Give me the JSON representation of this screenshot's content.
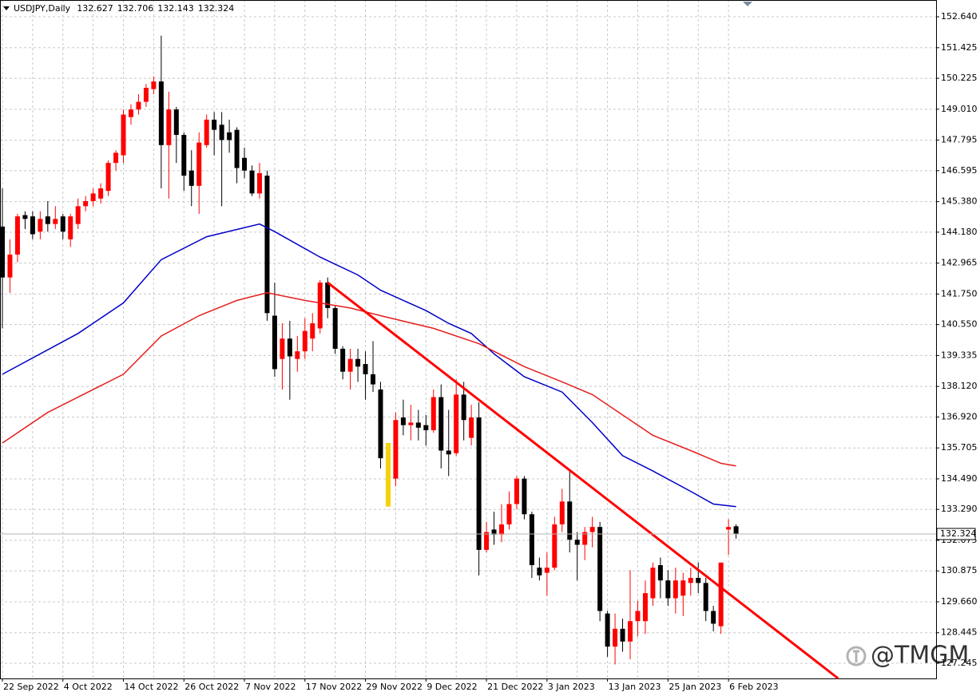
{
  "chart_data": {
    "type": "candlestick",
    "symbol": "USDJPY,Daily",
    "watermark": "@TMGM",
    "categories": [
      "22 Sep 2022",
      null,
      null,
      null,
      null,
      null,
      null,
      null,
      "4 Oct 2022",
      null,
      null,
      null,
      null,
      null,
      null,
      null,
      "14 Oct 2022",
      null,
      null,
      null,
      null,
      null,
      null,
      null,
      "26 Oct 2022",
      null,
      null,
      null,
      null,
      null,
      null,
      null,
      "7 Nov 2022",
      null,
      null,
      null,
      null,
      null,
      null,
      null,
      "17 Nov 2022",
      null,
      null,
      null,
      null,
      null,
      null,
      null,
      "29 Nov 2022",
      null,
      null,
      null,
      null,
      null,
      null,
      null,
      "9 Dec 2022",
      null,
      null,
      null,
      null,
      null,
      null,
      null,
      "21 Dec 2022",
      null,
      null,
      null,
      null,
      null,
      null,
      null,
      "3 Jan 2023",
      null,
      null,
      null,
      null,
      null,
      null,
      null,
      "13 Jan 2023",
      null,
      null,
      null,
      null,
      null,
      null,
      null,
      "25 Jan 2023",
      null,
      null,
      null,
      null,
      null,
      null,
      null,
      "6 Feb 2023",
      null
    ],
    "open": [
      144.4,
      142.4,
      143.3,
      144.85,
      144.8,
      144.2,
      144.8,
      144.5,
      144.8,
      143.9,
      144.5,
      145.2,
      145.4,
      145.5,
      145.8,
      146.9,
      147.2,
      148.7,
      149.0,
      149.3,
      149.8,
      150.1,
      147.6,
      149.0,
      148.0,
      146.6,
      146.0,
      147.6,
      148.6,
      148.4,
      148.1,
      148.2,
      147.1,
      146.6,
      145.7,
      146.4,
      140.9,
      139.2,
      140.0,
      139.2,
      139.5,
      140.0,
      140.4,
      142.2,
      141.2,
      139.6,
      138.7,
      139.2,
      139.0,
      138.6,
      138.0,
      135.9,
      134.5,
      136.9,
      136.6,
      136.7,
      136.6,
      136.4,
      137.7,
      135.6,
      135.5,
      137.8,
      136.1,
      136.9,
      131.7,
      132.5,
      132.3,
      132.7,
      133.5,
      134.5,
      133.1,
      131.0,
      130.8,
      131.0,
      132.7,
      133.6,
      132.1,
      131.9,
      132.4,
      132.6,
      129.2,
      127.9,
      128.6,
      128.1,
      128.9,
      128.9,
      129.8,
      131.1,
      130.5,
      129.8,
      129.9,
      130.4,
      130.6,
      130.4,
      129.3,
      128.7,
      132.5,
      132.627
    ],
    "high": [
      145.9,
      143.9,
      144.9,
      145.0,
      145.0,
      145.0,
      145.4,
      145.2,
      144.9,
      144.9,
      145.5,
      145.6,
      145.9,
      146.1,
      147.0,
      147.4,
      149.0,
      149.2,
      149.6,
      150.0,
      150.3,
      151.9,
      149.7,
      149.1,
      148.1,
      147.4,
      148.1,
      148.8,
      148.9,
      148.9,
      148.6,
      148.3,
      147.5,
      146.8,
      146.9,
      146.6,
      142.2,
      140.6,
      140.7,
      140.1,
      140.8,
      141.0,
      142.3,
      142.4,
      141.3,
      139.7,
      139.6,
      139.6,
      139.5,
      139.9,
      138.3,
      135.9,
      137.1,
      137.6,
      137.4,
      137.2,
      137.0,
      138.0,
      138.2,
      137.2,
      138.4,
      138.3,
      137.4,
      137.5,
      132.8,
      133.2,
      133.5,
      134.0,
      134.6,
      134.6,
      133.2,
      131.4,
      131.6,
      133.0,
      134.1,
      134.8,
      132.4,
      132.6,
      133.0,
      132.8,
      129.3,
      129.2,
      129.0,
      130.9,
      129.7,
      130.5,
      131.2,
      131.4,
      130.9,
      131.0,
      130.8,
      131.0,
      131.2,
      130.6,
      129.5,
      131.2,
      132.9,
      132.706
    ],
    "low": [
      140.4,
      141.8,
      143.0,
      144.3,
      143.9,
      143.9,
      144.2,
      144.3,
      143.9,
      143.6,
      144.3,
      145.0,
      145.2,
      145.3,
      145.6,
      146.6,
      146.9,
      148.4,
      148.8,
      149.1,
      149.6,
      145.9,
      145.5,
      146.9,
      145.8,
      145.2,
      144.9,
      147.5,
      147.2,
      145.2,
      147.3,
      146.1,
      146.3,
      145.6,
      145.5,
      140.7,
      138.5,
      138.0,
      137.6,
      138.7,
      139.2,
      139.5,
      140.2,
      140.8,
      139.4,
      138.4,
      138.0,
      138.3,
      137.6,
      137.9,
      134.9,
      133.4,
      134.2,
      136.2,
      136.0,
      136.0,
      135.8,
      136.3,
      134.9,
      134.6,
      135.4,
      136.0,
      135.8,
      130.7,
      131.6,
      131.9,
      132.0,
      132.5,
      133.3,
      132.9,
      130.6,
      130.5,
      129.9,
      130.9,
      132.4,
      131.6,
      130.5,
      131.3,
      131.8,
      128.9,
      127.5,
      127.2,
      127.7,
      127.4,
      128.3,
      128.4,
      129.5,
      129.8,
      129.5,
      129.2,
      129.1,
      129.9,
      130.0,
      128.9,
      128.5,
      128.4,
      131.5,
      132.143
    ],
    "close": [
      142.4,
      143.3,
      144.8,
      144.7,
      144.1,
      144.7,
      144.5,
      144.7,
      144.2,
      144.8,
      145.2,
      145.4,
      145.7,
      145.9,
      146.9,
      147.3,
      148.8,
      149.0,
      149.3,
      149.85,
      150.1,
      147.6,
      149.0,
      148.0,
      146.4,
      146.0,
      147.7,
      148.6,
      148.2,
      147.8,
      147.8,
      146.7,
      146.6,
      145.7,
      146.5,
      141.0,
      138.8,
      140.0,
      139.3,
      139.5,
      140.3,
      140.6,
      142.2,
      141.2,
      139.6,
      138.7,
      139.2,
      138.9,
      138.6,
      138.2,
      135.3,
      133.4,
      136.8,
      136.6,
      136.7,
      136.5,
      136.4,
      137.7,
      135.6,
      135.45,
      137.8,
      136.8,
      136.9,
      131.7,
      132.4,
      132.3,
      132.7,
      133.5,
      134.5,
      133.1,
      131.1,
      130.7,
      131.0,
      132.7,
      133.6,
      132.1,
      131.9,
      132.4,
      132.6,
      129.3,
      127.9,
      128.6,
      128.1,
      128.9,
      129.3,
      130.0,
      131.0,
      130.5,
      129.8,
      130.5,
      130.5,
      130.6,
      130.4,
      129.3,
      128.8,
      131.2,
      132.6,
      132.324
    ],
    "up_color": "#ff0000",
    "down_color": "#000000",
    "highlight": {
      "index": 51,
      "color": "#f5d10a"
    },
    "lines": [
      {
        "color": "#0000c8",
        "x": [
          0,
          10,
          16,
          21,
          27,
          34,
          36,
          42,
          47,
          50,
          56,
          59,
          62,
          65,
          69,
          74,
          78,
          82,
          86,
          91,
          94,
          97
        ],
        "values": [
          138.6,
          140.2,
          141.4,
          143.1,
          144.0,
          144.5,
          144.2,
          143.2,
          142.5,
          141.9,
          141.1,
          140.6,
          140.2,
          139.4,
          138.5,
          137.9,
          136.7,
          135.4,
          134.8,
          134.0,
          133.5,
          133.4
        ]
      },
      {
        "color": "#e61e1e",
        "x": [
          0,
          6,
          16,
          21,
          26,
          31,
          35,
          40,
          46,
          50,
          57,
          63,
          69,
          74,
          78,
          82,
          86,
          91,
          95,
          97
        ],
        "values": [
          135.9,
          137.1,
          138.6,
          140.1,
          140.9,
          141.5,
          141.8,
          141.5,
          141.2,
          140.9,
          140.4,
          139.8,
          138.9,
          138.3,
          137.8,
          137.0,
          136.2,
          135.6,
          135.1,
          135.0
        ]
      }
    ],
    "trendline": {
      "color": "#ff0000",
      "x": [
        43,
        97
      ],
      "values": [
        142.2,
        129.76
      ],
      "ray": true
    },
    "ylim": [
      126.65,
      153.3
    ],
    "yticks": [
      {
        "value": 152.64,
        "label": "152.640"
      },
      {
        "value": 151.425,
        "label": "151.425"
      },
      {
        "value": 150.225,
        "label": "150.225"
      },
      {
        "value": 149.01,
        "label": "149.010"
      },
      {
        "value": 147.795,
        "label": "147.795"
      },
      {
        "value": 146.595,
        "label": "146.595"
      },
      {
        "value": 145.38,
        "label": "145.380"
      },
      {
        "value": 144.18,
        "label": "144.180"
      },
      {
        "value": 142.965,
        "label": "142.965"
      },
      {
        "value": 141.75,
        "label": "141.750"
      },
      {
        "value": 140.55,
        "label": "140.550"
      },
      {
        "value": 139.335,
        "label": "139.335"
      },
      {
        "value": 138.12,
        "label": "138.120"
      },
      {
        "value": 136.92,
        "label": "136.920"
      },
      {
        "value": 135.705,
        "label": "135.705"
      },
      {
        "value": 134.49,
        "label": "134.490"
      },
      {
        "value": 133.29,
        "label": "133.290"
      },
      {
        "value": 132.075,
        "label": "132.075"
      },
      {
        "value": 130.875,
        "label": "130.875"
      },
      {
        "value": 129.66,
        "label": "129.660"
      },
      {
        "value": 128.445,
        "label": "128.445"
      },
      {
        "value": 127.245,
        "label": "127.245"
      }
    ],
    "grid": true
  }
}
